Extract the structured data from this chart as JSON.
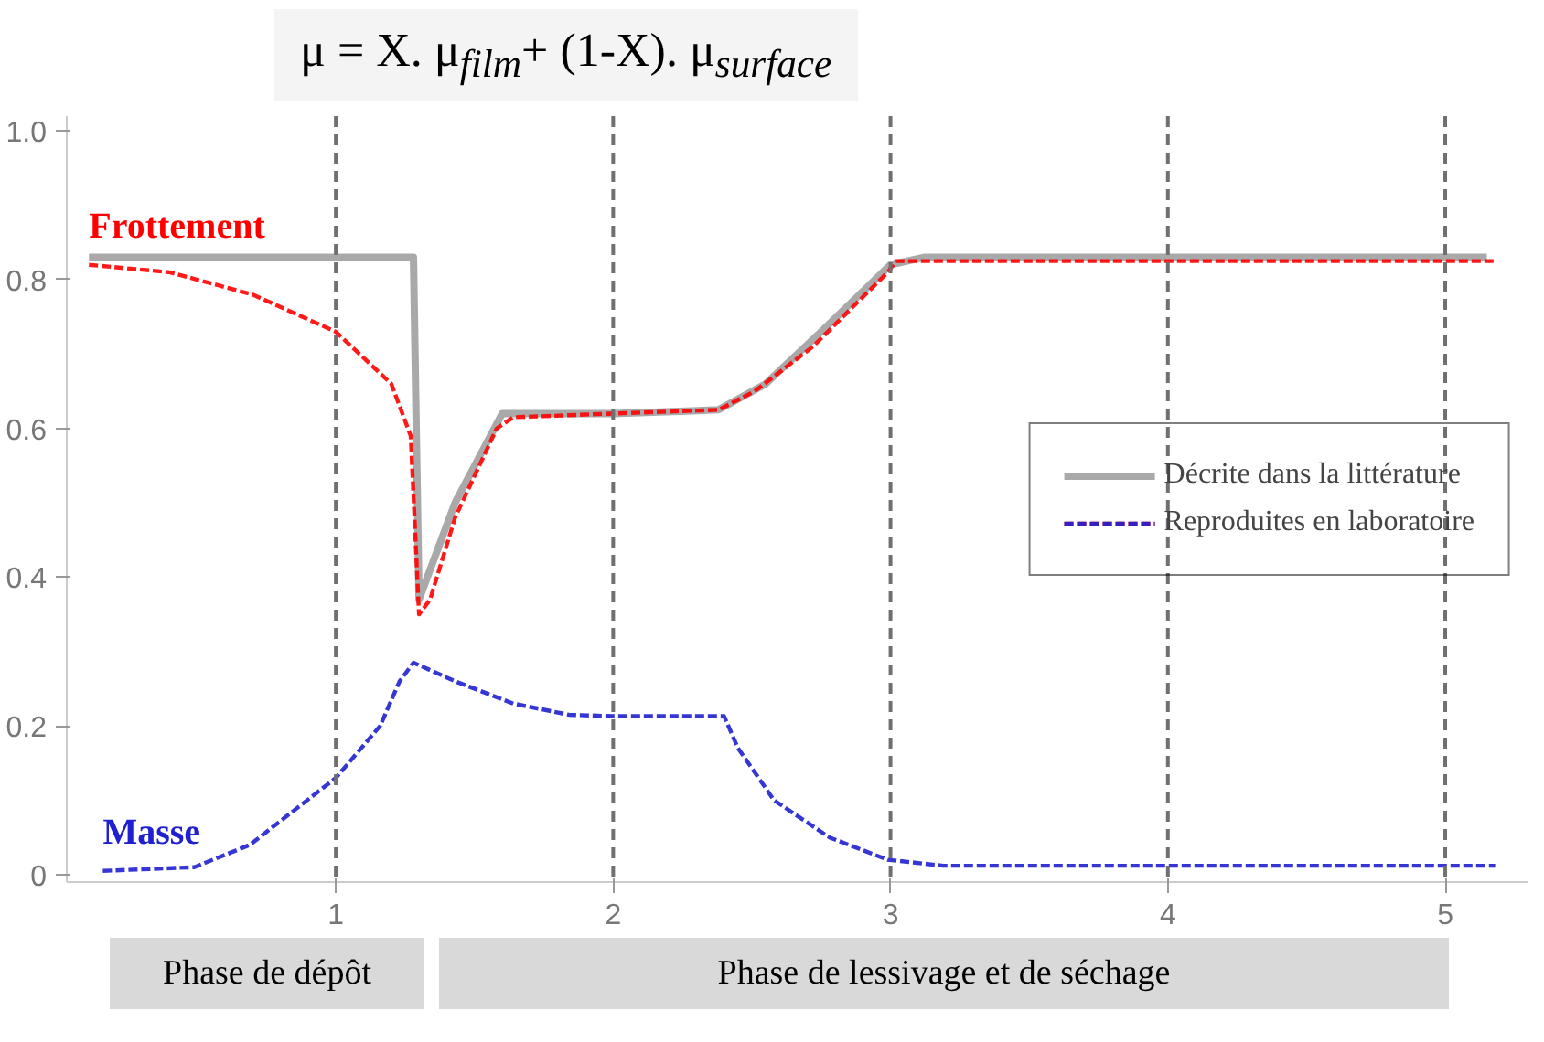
{
  "chart_data": {
    "type": "line",
    "title": "μ = X. μ$_{film}$+ (1-X). μ$_{surface}$",
    "series": [
      {
        "name": "Décrite dans la littérature",
        "color": "#a0a0a0",
        "line_style": "solid",
        "x": [
          0.11,
          1.28,
          1.3,
          1.43,
          1.6,
          2.0,
          2.38,
          2.55,
          2.75,
          3.0,
          3.12,
          4.0,
          5.15
        ],
        "values": [
          0.83,
          0.83,
          0.37,
          0.5,
          0.62,
          0.62,
          0.625,
          0.66,
          0.73,
          0.82,
          0.83,
          0.83,
          0.83
        ]
      },
      {
        "name": "Frottement",
        "color": "#ff0000",
        "line_style": "dashed",
        "x": [
          0.11,
          0.4,
          0.7,
          1.0,
          1.2,
          1.27,
          1.3,
          1.34,
          1.43,
          1.58,
          1.64,
          2.0,
          2.38,
          2.51,
          2.72,
          2.99,
          3.02,
          4.0,
          5.18
        ],
        "values": [
          0.82,
          0.81,
          0.78,
          0.73,
          0.66,
          0.59,
          0.35,
          0.37,
          0.48,
          0.6,
          0.615,
          0.62,
          0.625,
          0.65,
          0.71,
          0.81,
          0.825,
          0.825,
          0.825
        ]
      },
      {
        "name": "Masse",
        "color": "#2020d0",
        "line_style": "dashed",
        "x": [
          0.16,
          0.49,
          0.69,
          1.0,
          1.16,
          1.23,
          1.28,
          1.43,
          1.64,
          1.84,
          2.0,
          2.4,
          2.45,
          2.58,
          2.78,
          2.99,
          3.19,
          4.0,
          5.18
        ],
        "values": [
          0.005,
          0.01,
          0.04,
          0.13,
          0.2,
          0.26,
          0.285,
          0.26,
          0.23,
          0.215,
          0.213,
          0.213,
          0.17,
          0.1,
          0.05,
          0.02,
          0.012,
          0.012,
          0.012
        ]
      }
    ],
    "xlim": [
      0.03,
      5.3
    ],
    "ylim": [
      -0.01,
      1.02
    ],
    "xticks": [
      1,
      2,
      3,
      4,
      5
    ],
    "yticks": [
      0,
      0.2,
      0.4,
      0.6,
      0.8,
      {
        "value": 1,
        "label": "1.0"
      }
    ],
    "ref_lines": [
      {
        "axis": "x",
        "value": 1,
        "color": "#707070",
        "line_style": "dashed"
      },
      {
        "axis": "x",
        "value": 2,
        "color": "#707070",
        "line_style": "dashed"
      },
      {
        "axis": "x",
        "value": 3,
        "color": "#707070",
        "line_style": "dashed"
      },
      {
        "axis": "x",
        "value": 4,
        "color": "#707070",
        "line_style": "dashed"
      },
      {
        "axis": "x",
        "value": 5,
        "color": "#707070",
        "line_style": "dashed"
      }
    ],
    "annotations": [
      "Reproduites en laboratoire",
      "Phase de dépôt",
      "Phase de lessivage et de séchage"
    ],
    "legend": "right",
    "grid": false
  }
}
